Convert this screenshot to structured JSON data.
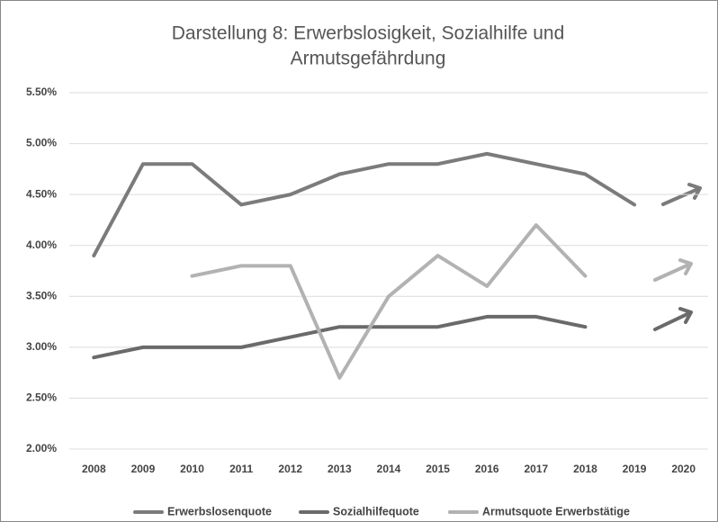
{
  "chart_data": {
    "type": "line",
    "title": [
      "Darstellung 8: Erwerbslosigkeit, Sozialhilfe und",
      "Armutsgefährdung"
    ],
    "categories": [
      "2008",
      "2009",
      "2010",
      "2011",
      "2012",
      "2013",
      "2014",
      "2015",
      "2016",
      "2017",
      "2018",
      "2019",
      "2020"
    ],
    "series": [
      {
        "name": "Erwerbslosenquote",
        "color": "#7b7b7b",
        "values": [
          3.9,
          4.8,
          4.8,
          4.4,
          4.5,
          4.7,
          4.8,
          4.8,
          4.9,
          4.8,
          4.7,
          4.4,
          null
        ]
      },
      {
        "name": "Sozialhilfequote",
        "color": "#6a6a6a",
        "values": [
          2.9,
          3.0,
          3.0,
          3.0,
          3.1,
          3.2,
          3.2,
          3.2,
          3.3,
          3.3,
          3.2,
          null,
          null
        ]
      },
      {
        "name": "Armutsquote Erwerbstätige",
        "color": "#b2b2b2",
        "values": [
          null,
          null,
          3.7,
          3.8,
          3.8,
          2.7,
          3.5,
          3.9,
          3.6,
          4.2,
          3.7,
          null,
          null
        ]
      }
    ],
    "ylim": [
      2.0,
      5.5
    ],
    "yticks": [
      {
        "value": 2.0,
        "label": "2.00%"
      },
      {
        "value": 2.5,
        "label": "2.50%"
      },
      {
        "value": 3.0,
        "label": "3.00%"
      },
      {
        "value": 3.5,
        "label": "3.50%"
      },
      {
        "value": 4.0,
        "label": "4.00%"
      },
      {
        "value": 4.5,
        "label": "4.50%"
      },
      {
        "value": 5.0,
        "label": "5.00%"
      },
      {
        "value": 5.5,
        "label": "5.50%"
      }
    ],
    "grid": true
  }
}
